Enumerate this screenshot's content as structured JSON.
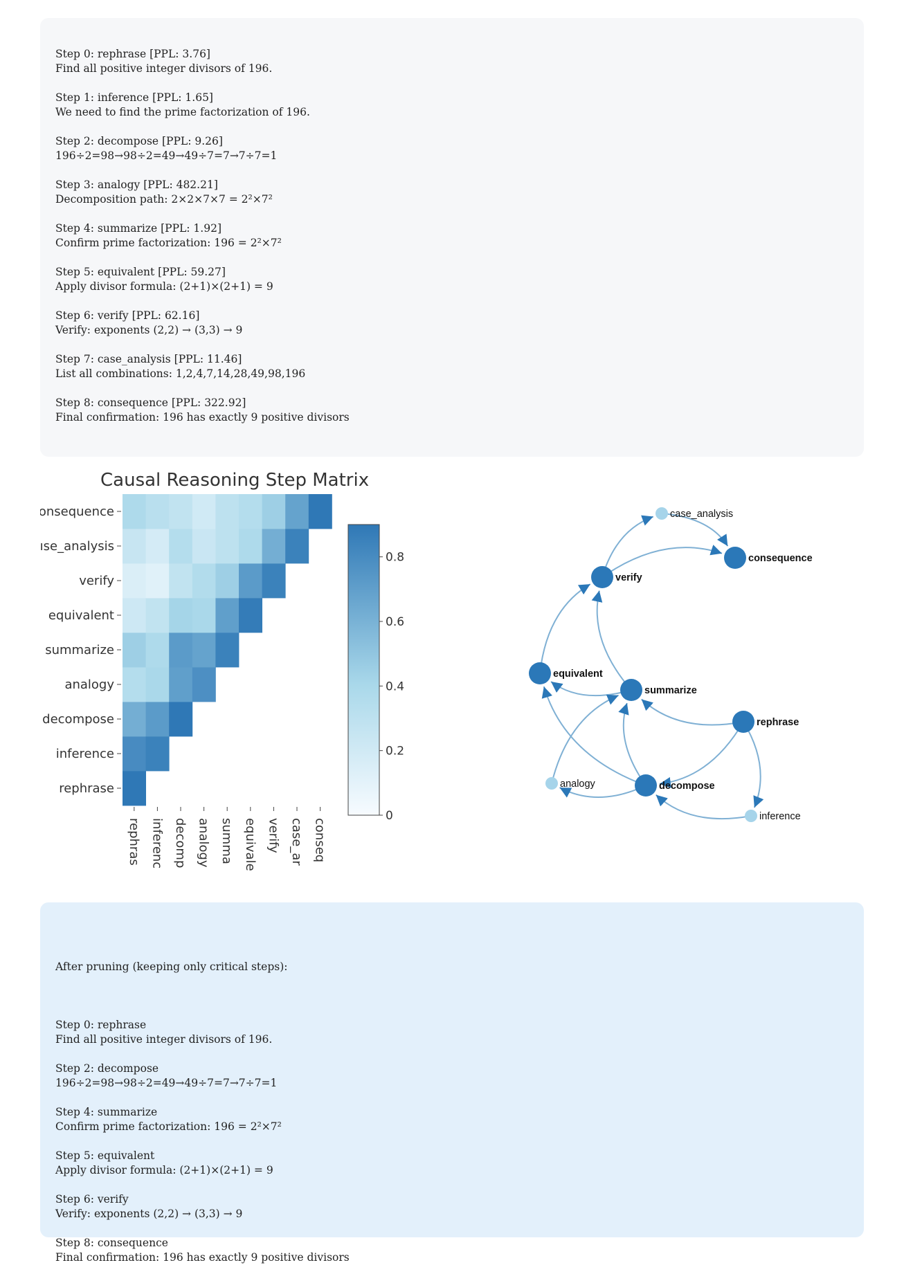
{
  "steps": [
    {
      "header": "Step 0: rephrase [PPL: 3.76]",
      "text": "Find all positive integer divisors of 196."
    },
    {
      "header": "Step 1: inference [PPL: 1.65]",
      "text": "We need to find the prime factorization of 196."
    },
    {
      "header": "Step 2: decompose [PPL: 9.26]",
      "text": "196÷2=98→98÷2=49→49÷7=7→7÷7=1"
    },
    {
      "header": "Step 3: analogy [PPL: 482.21]",
      "text": "Decomposition path: 2×2×7×7 = 2²×7²"
    },
    {
      "header": "Step 4: summarize [PPL: 1.92]",
      "text": "Confirm prime factorization: 196 = 2²×7²"
    },
    {
      "header": "Step 5: equivalent [PPL: 59.27]",
      "text": "Apply divisor formula: (2+1)×(2+1) = 9"
    },
    {
      "header": "Step 6: verify [PPL: 62.16]",
      "text": "Verify: exponents (2,2) → (3,3) → 9"
    },
    {
      "header": "Step 7: case_analysis [PPL: 11.46]",
      "text": "List all combinations: 1,2,4,7,14,28,49,98,196"
    },
    {
      "header": "Step 8: consequence [PPL: 322.92]",
      "text": "Final confirmation: 196 has exactly 9 positive divisors"
    }
  ],
  "pruned": {
    "intro": "After pruning (keeping only critical steps):",
    "steps": [
      {
        "header": "Step 0: rephrase",
        "text": "Find all positive integer divisors of 196."
      },
      {
        "header": "Step 2: decompose",
        "text": "196÷2=98→98÷2=49→49÷7=7→7÷7=1"
      },
      {
        "header": "Step 4: summarize",
        "text": "Confirm prime factorization: 196 = 2²×7²"
      },
      {
        "header": "Step 5: equivalent",
        "text": "Apply divisor formula: (2+1)×(2+1) = 9"
      },
      {
        "header": "Step 6: verify",
        "text": "Verify: exponents (2,2) → (3,3) → 9"
      },
      {
        "header": "Step 8: consequence",
        "text": "Final confirmation: 196 has exactly 9 positive divisors"
      }
    ]
  },
  "chart_data": [
    {
      "type": "heatmap",
      "title": "Causal Reasoning Step Matrix",
      "y_labels_visible": [
        "onsequence",
        "ıse_analysis",
        "verify",
        "equivalent",
        "summarize",
        "analogy",
        "decompose",
        "inference",
        "rephrase"
      ],
      "x_labels_visible": [
        "rephras",
        "inferenc",
        "decomp",
        "analogy",
        "summa",
        "equivale",
        "verify",
        "case_ar",
        "conseq"
      ],
      "categories": [
        "rephrase",
        "inference",
        "decompose",
        "analogy",
        "summarize",
        "equivalent",
        "verify",
        "case_analysis",
        "consequence"
      ],
      "values": [
        [
          0.9,
          0.8,
          0.62,
          0.35,
          0.45,
          0.22,
          0.15,
          0.25,
          0.38
        ],
        [
          null,
          0.85,
          0.72,
          0.4,
          0.38,
          0.28,
          0.12,
          0.18,
          0.32
        ],
        [
          null,
          null,
          0.92,
          0.7,
          0.72,
          0.42,
          0.28,
          0.35,
          0.28
        ],
        [
          null,
          null,
          null,
          0.78,
          0.68,
          0.4,
          0.36,
          0.24,
          0.2
        ],
        [
          null,
          null,
          null,
          null,
          0.85,
          0.7,
          0.45,
          0.3,
          0.3
        ],
        [
          null,
          null,
          null,
          null,
          null,
          0.88,
          0.72,
          0.38,
          0.35
        ],
        [
          null,
          null,
          null,
          null,
          null,
          null,
          0.85,
          0.62,
          0.45
        ],
        [
          null,
          null,
          null,
          null,
          null,
          null,
          null,
          0.85,
          0.68
        ],
        [
          null,
          null,
          null,
          null,
          null,
          null,
          null,
          null,
          0.9
        ]
      ],
      "colorbar": {
        "min": 0,
        "max": 0.9,
        "ticks": [
          0,
          0.2,
          0.4,
          0.6,
          0.8
        ],
        "tick_labels": [
          "0",
          "0.2",
          "0.4",
          "0.6",
          "0.8"
        ]
      },
      "colors": {
        "low": "#f7fbff",
        "mid": "#a9d8ea",
        "high": "#2f78b6"
      }
    },
    {
      "type": "network",
      "nodes": [
        {
          "id": "case_analysis",
          "label": "case_analysis",
          "critical": false
        },
        {
          "id": "consequence",
          "label": "consequence",
          "critical": true
        },
        {
          "id": "verify",
          "label": "verify",
          "critical": true
        },
        {
          "id": "equivalent",
          "label": "equivalent",
          "critical": true
        },
        {
          "id": "summarize",
          "label": "summarize",
          "critical": true
        },
        {
          "id": "rephrase",
          "label": "rephrase",
          "critical": true
        },
        {
          "id": "analogy",
          "label": "analogy",
          "critical": false
        },
        {
          "id": "decompose",
          "label": "decompose",
          "critical": true
        },
        {
          "id": "inference",
          "label": "inference",
          "critical": false
        }
      ],
      "edges": [
        {
          "from": "verify",
          "to": "case_analysis"
        },
        {
          "from": "case_analysis",
          "to": "consequence"
        },
        {
          "from": "verify",
          "to": "consequence"
        },
        {
          "from": "equivalent",
          "to": "verify"
        },
        {
          "from": "summarize",
          "to": "verify"
        },
        {
          "from": "summarize",
          "to": "equivalent"
        },
        {
          "from": "rephrase",
          "to": "summarize"
        },
        {
          "from": "rephrase",
          "to": "decompose"
        },
        {
          "from": "rephrase",
          "to": "inference"
        },
        {
          "from": "inference",
          "to": "decompose"
        },
        {
          "from": "decompose",
          "to": "summarize"
        },
        {
          "from": "decompose",
          "to": "equivalent"
        },
        {
          "from": "decompose",
          "to": "analogy"
        },
        {
          "from": "analogy",
          "to": "summarize"
        }
      ],
      "colors": {
        "critical": "#2b78b8",
        "noncritical": "#a6d4ea",
        "edge": "#7fb0d4"
      }
    }
  ]
}
